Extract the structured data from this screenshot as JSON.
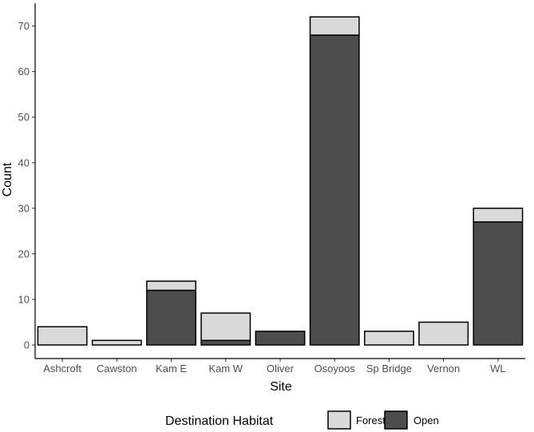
{
  "chart_data": {
    "type": "bar",
    "stacked": true,
    "categories": [
      "Ashcroft",
      "Cawston",
      "Kam E",
      "Kam W",
      "Oliver",
      "Osoyoos",
      "Sp Bridge",
      "Vernon",
      "WL"
    ],
    "series": [
      {
        "name": "Open",
        "color": "#4d4d4d",
        "values": [
          0,
          0,
          12,
          1,
          3,
          68,
          0,
          0,
          27
        ]
      },
      {
        "name": "Forest",
        "color": "#d9d9d9",
        "values": [
          4,
          1,
          2,
          6,
          0,
          4,
          3,
          5,
          3
        ]
      }
    ],
    "title": "",
    "xlabel": "Site",
    "ylabel": "Count",
    "ylim": [
      0,
      75
    ],
    "yticks": [
      0,
      10,
      20,
      30,
      40,
      50,
      60,
      70
    ],
    "grid": false,
    "legend": {
      "title": "Destination Habitat",
      "placement": "bottom",
      "entries": [
        {
          "label": "Forest",
          "color": "#d9d9d9"
        },
        {
          "label": "Open",
          "color": "#4d4d4d"
        }
      ]
    }
  }
}
